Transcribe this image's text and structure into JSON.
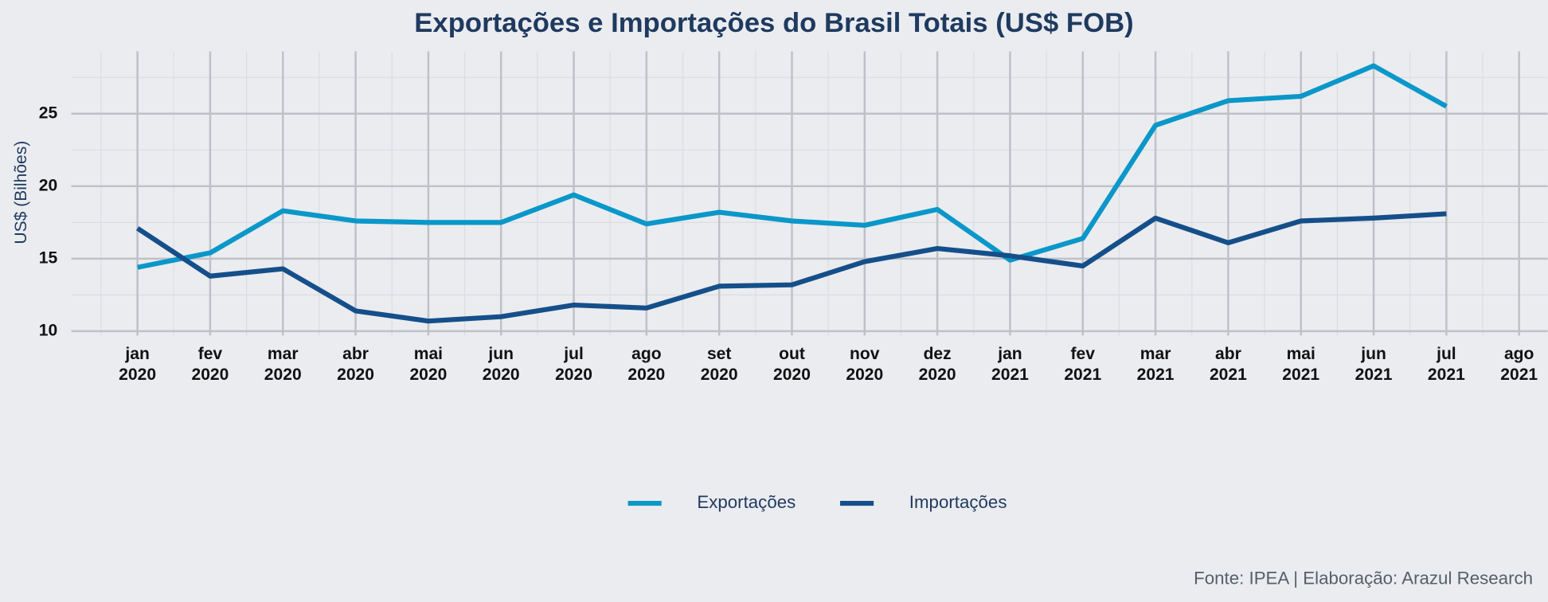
{
  "chart_data": {
    "type": "line",
    "title": "Exportações e Importações do Brasil Totais (US$ FOB)",
    "y_label": "US$ (Bilhões)",
    "caption": "Fonte: IPEA | Elaboração: Arazul Research",
    "categories": [
      "jan\n2020",
      "fev\n2020",
      "mar\n2020",
      "abr\n2020",
      "mai\n2020",
      "jun\n2020",
      "jul\n2020",
      "ago\n2020",
      "set\n2020",
      "out\n2020",
      "nov\n2020",
      "dez\n2020",
      "jan\n2021",
      "fev\n2021",
      "mar\n2021",
      "abr\n2021",
      "mai\n2021",
      "jun\n2021",
      "jul\n2021",
      "ago\n2021"
    ],
    "series": [
      {
        "name": "Exportações",
        "color": "#0a97c9",
        "values": [
          14.4,
          15.4,
          18.3,
          17.6,
          17.5,
          17.5,
          19.4,
          17.4,
          18.2,
          17.6,
          17.3,
          18.4,
          14.9,
          16.4,
          24.2,
          25.9,
          26.2,
          28.3,
          25.5,
          null
        ]
      },
      {
        "name": "Importações",
        "color": "#154f8a",
        "values": [
          17.1,
          13.8,
          14.3,
          11.4,
          10.7,
          11.0,
          11.8,
          11.6,
          13.1,
          13.2,
          14.8,
          15.7,
          15.2,
          14.5,
          17.8,
          16.1,
          17.6,
          17.8,
          18.1,
          null
        ]
      }
    ],
    "ylim": [
      9.7,
      29.3
    ],
    "yticks": [
      10,
      15,
      20,
      25
    ],
    "grid": true,
    "legend": "bottom"
  }
}
